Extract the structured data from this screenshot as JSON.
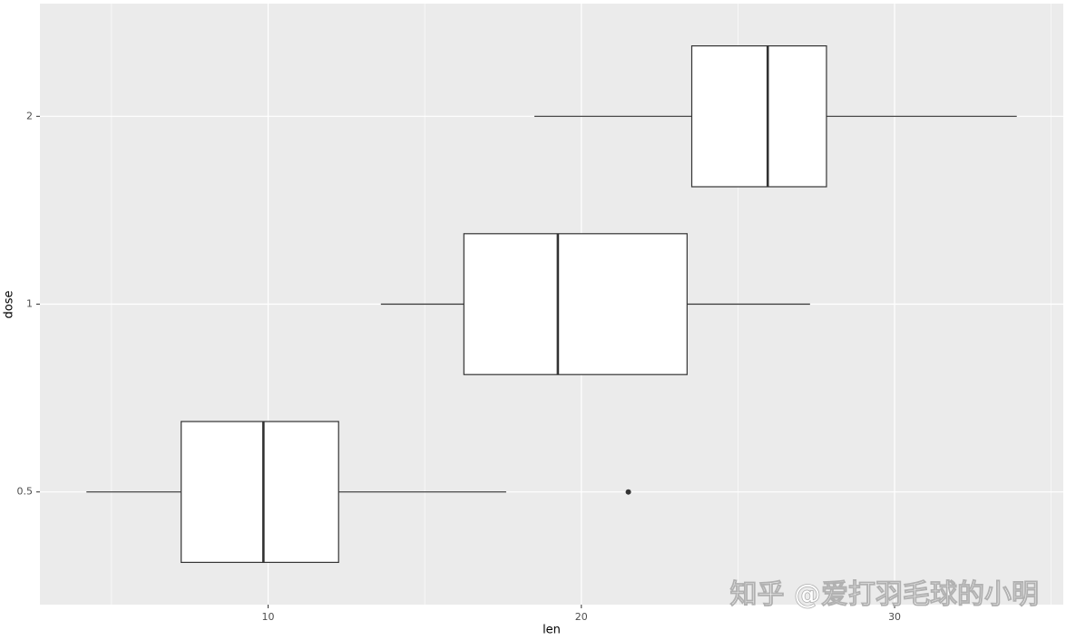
{
  "chart_data": {
    "type": "boxplot",
    "orientation": "horizontal",
    "x_label": "len",
    "y_label": "dose",
    "categories": [
      "0.5",
      "1",
      "2"
    ],
    "min": [
      4.2,
      13.6,
      18.5
    ],
    "q1": [
      7.225,
      16.25,
      23.525
    ],
    "median": [
      9.85,
      19.25,
      25.95
    ],
    "q3": [
      12.25,
      23.375,
      27.825
    ],
    "max": [
      17.6,
      27.3,
      33.9
    ],
    "outliers": [
      [
        21.5
      ],
      [],
      []
    ],
    "xlim": [
      2.715,
      35.385
    ],
    "xticks": [
      10,
      20,
      30
    ],
    "xminorticks": [
      5,
      15,
      25,
      35
    ],
    "grid": true,
    "box_color": "#ffffff",
    "line_color": "#333333",
    "panel_color": "#ebebeb",
    "watermark": "知乎 @爱打羽毛球的小明"
  }
}
